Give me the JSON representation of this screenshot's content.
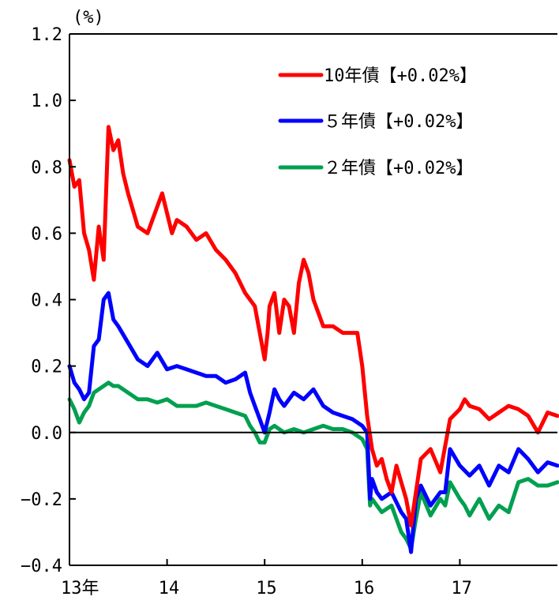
{
  "chart_data": {
    "type": "line",
    "unit_label": "(%)",
    "y_ticks": [
      "1.2",
      "1.0",
      "0.8",
      "0.6",
      "0.4",
      "0.2",
      "0.0",
      "−0.2",
      "−0.4"
    ],
    "x_ticks": [
      "13年",
      "14",
      "15",
      "16",
      "17"
    ],
    "x_tick_years": [
      2013,
      2014,
      2015,
      2016,
      2017
    ],
    "xlim": [
      2013.0,
      2018.0
    ],
    "ylim": [
      -0.4,
      1.2
    ],
    "grid": false,
    "zero_line": true,
    "legend_position": "top-right",
    "series": [
      {
        "name": "10年債【+0.02%】",
        "color": "#ff0000",
        "x": [
          2013.0,
          2013.05,
          2013.1,
          2013.15,
          2013.2,
          2013.25,
          2013.3,
          2013.35,
          2013.4,
          2013.45,
          2013.5,
          2013.55,
          2013.6,
          2013.7,
          2013.8,
          2013.9,
          2013.95,
          2014.0,
          2014.05,
          2014.1,
          2014.2,
          2014.3,
          2014.4,
          2014.5,
          2014.6,
          2014.7,
          2014.8,
          2014.9,
          2014.95,
          2015.0,
          2015.03,
          2015.05,
          2015.1,
          2015.15,
          2015.2,
          2015.25,
          2015.3,
          2015.35,
          2015.4,
          2015.45,
          2015.5,
          2015.55,
          2015.6,
          2015.7,
          2015.8,
          2015.9,
          2015.95,
          2016.0,
          2016.05,
          2016.1,
          2016.15,
          2016.2,
          2016.25,
          2016.3,
          2016.35,
          2016.4,
          2016.45,
          2016.5,
          2016.55,
          2016.6,
          2016.7,
          2016.8,
          2016.85,
          2016.9,
          2017.0,
          2017.05,
          2017.1,
          2017.2,
          2017.3,
          2017.4,
          2017.5,
          2017.6,
          2017.7,
          2017.8,
          2017.9,
          2018.0
        ],
        "values": [
          0.82,
          0.74,
          0.76,
          0.6,
          0.55,
          0.46,
          0.62,
          0.52,
          0.92,
          0.85,
          0.88,
          0.78,
          0.72,
          0.62,
          0.6,
          0.68,
          0.72,
          0.66,
          0.6,
          0.64,
          0.62,
          0.58,
          0.6,
          0.55,
          0.52,
          0.48,
          0.42,
          0.38,
          0.3,
          0.22,
          0.3,
          0.38,
          0.42,
          0.3,
          0.4,
          0.38,
          0.3,
          0.45,
          0.52,
          0.48,
          0.4,
          0.36,
          0.32,
          0.32,
          0.3,
          0.3,
          0.3,
          0.2,
          0.05,
          -0.05,
          -0.1,
          -0.08,
          -0.14,
          -0.18,
          -0.1,
          -0.15,
          -0.2,
          -0.28,
          -0.18,
          -0.08,
          -0.05,
          -0.12,
          -0.04,
          0.04,
          0.07,
          0.1,
          0.08,
          0.07,
          0.04,
          0.06,
          0.08,
          0.07,
          0.05,
          0.0,
          0.06,
          0.05
        ]
      },
      {
        "name": "５年債【+0.02%】",
        "color": "#0000ff",
        "x": [
          2013.0,
          2013.05,
          2013.1,
          2013.15,
          2013.2,
          2013.25,
          2013.3,
          2013.35,
          2013.4,
          2013.45,
          2013.5,
          2013.6,
          2013.7,
          2013.8,
          2013.9,
          2014.0,
          2014.1,
          2014.2,
          2014.3,
          2014.4,
          2014.5,
          2014.6,
          2014.7,
          2014.8,
          2014.85,
          2014.9,
          2014.95,
          2015.0,
          2015.05,
          2015.1,
          2015.15,
          2015.2,
          2015.3,
          2015.4,
          2015.5,
          2015.6,
          2015.7,
          2015.8,
          2015.9,
          2016.0,
          2016.05,
          2016.08,
          2016.1,
          2016.15,
          2016.2,
          2016.3,
          2016.4,
          2016.45,
          2016.5,
          2016.55,
          2016.6,
          2016.7,
          2016.8,
          2016.85,
          2016.9,
          2017.0,
          2017.1,
          2017.2,
          2017.3,
          2017.4,
          2017.5,
          2017.6,
          2017.7,
          2017.8,
          2017.9,
          2018.0
        ],
        "values": [
          0.2,
          0.15,
          0.13,
          0.1,
          0.12,
          0.26,
          0.28,
          0.4,
          0.42,
          0.34,
          0.32,
          0.27,
          0.22,
          0.2,
          0.24,
          0.19,
          0.2,
          0.19,
          0.18,
          0.17,
          0.17,
          0.15,
          0.16,
          0.18,
          0.12,
          0.08,
          0.04,
          0.0,
          0.06,
          0.13,
          0.1,
          0.08,
          0.12,
          0.1,
          0.13,
          0.08,
          0.06,
          0.05,
          0.04,
          0.02,
          0.0,
          -0.2,
          -0.14,
          -0.18,
          -0.2,
          -0.18,
          -0.24,
          -0.26,
          -0.36,
          -0.2,
          -0.16,
          -0.22,
          -0.18,
          -0.18,
          -0.05,
          -0.1,
          -0.13,
          -0.1,
          -0.16,
          -0.1,
          -0.12,
          -0.05,
          -0.08,
          -0.12,
          -0.09,
          -0.1
        ]
      },
      {
        "name": "２年債【+0.02%】",
        "color": "#00a050",
        "x": [
          2013.0,
          2013.05,
          2013.1,
          2013.15,
          2013.2,
          2013.25,
          2013.3,
          2013.4,
          2013.45,
          2013.5,
          2013.6,
          2013.7,
          2013.8,
          2013.9,
          2014.0,
          2014.1,
          2014.2,
          2014.3,
          2014.4,
          2014.5,
          2014.6,
          2014.7,
          2014.8,
          2014.85,
          2014.9,
          2014.95,
          2015.0,
          2015.05,
          2015.1,
          2015.2,
          2015.3,
          2015.4,
          2015.5,
          2015.6,
          2015.7,
          2015.8,
          2015.9,
          2016.0,
          2016.05,
          2016.08,
          2016.1,
          2016.2,
          2016.3,
          2016.4,
          2016.45,
          2016.5,
          2016.55,
          2016.6,
          2016.7,
          2016.8,
          2016.85,
          2016.9,
          2017.0,
          2017.05,
          2017.1,
          2017.2,
          2017.3,
          2017.4,
          2017.5,
          2017.6,
          2017.7,
          2017.8,
          2017.9,
          2018.0
        ],
        "values": [
          0.1,
          0.07,
          0.03,
          0.06,
          0.08,
          0.12,
          0.13,
          0.15,
          0.14,
          0.14,
          0.12,
          0.1,
          0.1,
          0.09,
          0.1,
          0.08,
          0.08,
          0.08,
          0.09,
          0.08,
          0.07,
          0.06,
          0.05,
          0.02,
          0.0,
          -0.03,
          -0.03,
          0.01,
          0.02,
          0.0,
          0.01,
          0.0,
          0.01,
          0.02,
          0.01,
          0.01,
          0.0,
          -0.02,
          -0.05,
          -0.22,
          -0.2,
          -0.24,
          -0.22,
          -0.3,
          -0.32,
          -0.35,
          -0.26,
          -0.18,
          -0.25,
          -0.2,
          -0.22,
          -0.15,
          -0.2,
          -0.22,
          -0.25,
          -0.2,
          -0.26,
          -0.22,
          -0.24,
          -0.15,
          -0.14,
          -0.16,
          -0.16,
          -0.15
        ]
      }
    ]
  }
}
